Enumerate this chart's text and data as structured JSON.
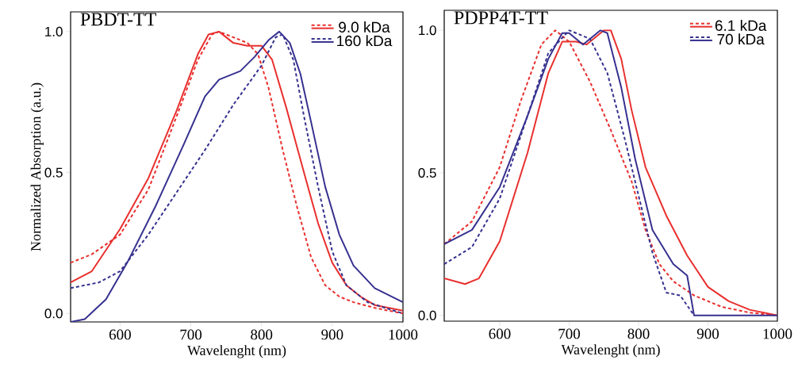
{
  "chart_data": [
    {
      "type": "line",
      "title": "PBDT-TT",
      "xlabel": "Wavelenght (nm)",
      "ylabel": "Normalized Absorption (a.u.)",
      "xlim": [
        530,
        1000
      ],
      "ylim": [
        -0.03,
        1.07
      ],
      "xticks": [
        600,
        700,
        800,
        900,
        1000
      ],
      "yticks": [
        {
          "value": 0,
          "label": "0.0"
        },
        {
          "value": 0.5,
          "label": "0.5"
        },
        {
          "value": 1,
          "label": "1.0"
        }
      ],
      "legend": "top right",
      "series": [
        {
          "name": "9.0 kDa",
          "color": "#e8302e",
          "line_style": "dashed",
          "x": [
            530,
            560,
            600,
            640,
            680,
            710,
            730,
            740,
            760,
            780,
            795,
            810,
            830,
            850,
            870,
            890,
            910,
            930,
            960,
            1000
          ],
          "values": [
            0.18,
            0.21,
            0.28,
            0.44,
            0.7,
            0.9,
            0.99,
            1.0,
            0.98,
            0.96,
            0.92,
            0.8,
            0.58,
            0.38,
            0.2,
            0.1,
            0.06,
            0.04,
            0.02,
            0.0
          ]
        },
        {
          "color": "#e8302e",
          "line_style": "solid",
          "x": [
            530,
            560,
            600,
            640,
            680,
            710,
            725,
            740,
            760,
            780,
            800,
            815,
            835,
            860,
            880,
            900,
            920,
            940,
            960,
            1000
          ],
          "values": [
            0.11,
            0.15,
            0.3,
            0.48,
            0.72,
            0.92,
            0.99,
            1.0,
            0.96,
            0.95,
            0.95,
            0.9,
            0.73,
            0.5,
            0.32,
            0.18,
            0.1,
            0.06,
            0.03,
            0.01
          ]
        },
        {
          "name": "160 kDa",
          "color": "#36318f",
          "line_style": "dashed",
          "x": [
            530,
            570,
            600,
            640,
            680,
            720,
            760,
            800,
            820,
            830,
            845,
            860,
            880,
            900,
            920,
            950,
            1000
          ],
          "values": [
            0.09,
            0.11,
            0.15,
            0.28,
            0.43,
            0.58,
            0.74,
            0.88,
            0.98,
            0.99,
            0.9,
            0.7,
            0.45,
            0.22,
            0.1,
            0.04,
            0.0
          ]
        },
        {
          "color": "#36318f",
          "line_style": "solid",
          "x": [
            530,
            550,
            580,
            610,
            650,
            690,
            720,
            740,
            770,
            790,
            810,
            825,
            840,
            855,
            870,
            890,
            910,
            930,
            960,
            1000
          ],
          "values": [
            -0.03,
            -0.02,
            0.05,
            0.18,
            0.38,
            0.6,
            0.77,
            0.83,
            0.86,
            0.91,
            0.97,
            1.0,
            0.96,
            0.85,
            0.68,
            0.45,
            0.28,
            0.17,
            0.09,
            0.04
          ]
        }
      ]
    },
    {
      "type": "line",
      "title": "PDPP4T-TT",
      "xlabel": "Wavelenght (nm)",
      "xlim": [
        520,
        1000
      ],
      "ylim": [
        -0.02,
        1.07
      ],
      "xticks": [
        600,
        700,
        800,
        900,
        1000
      ],
      "yticks": [
        {
          "value": 0,
          "label": "0.0"
        },
        {
          "value": 0.5,
          "label": "0.5"
        },
        {
          "value": 1,
          "label": "1.0"
        }
      ],
      "legend": "top right",
      "series": [
        {
          "name": "6.1 kDa",
          "color": "#e8302e",
          "line_style": "dashed",
          "x": [
            520,
            560,
            600,
            630,
            660,
            680,
            700,
            730,
            760,
            790,
            810,
            830,
            850,
            880,
            920,
            960,
            1000
          ],
          "values": [
            0.25,
            0.33,
            0.52,
            0.75,
            0.95,
            1.0,
            0.96,
            0.82,
            0.65,
            0.47,
            0.3,
            0.18,
            0.12,
            0.07,
            0.03,
            0.01,
            0.0
          ]
        },
        {
          "color": "#e8302e",
          "line_style": "solid",
          "x": [
            520,
            550,
            570,
            600,
            640,
            670,
            690,
            710,
            725,
            750,
            760,
            775,
            790,
            810,
            840,
            870,
            900,
            930,
            960,
            1000
          ],
          "values": [
            0.13,
            0.11,
            0.13,
            0.26,
            0.57,
            0.85,
            0.96,
            0.96,
            0.95,
            1.0,
            1.0,
            0.9,
            0.72,
            0.52,
            0.35,
            0.21,
            0.1,
            0.05,
            0.02,
            0.0
          ]
        },
        {
          "name": "70 kDa",
          "color": "#36318f",
          "line_style": "dashed",
          "x": [
            520,
            560,
            600,
            640,
            670,
            700,
            730,
            755,
            780,
            800,
            820,
            840,
            860,
            880
          ],
          "values": [
            0.18,
            0.24,
            0.41,
            0.7,
            0.92,
            1.0,
            0.97,
            0.85,
            0.62,
            0.42,
            0.22,
            0.08,
            0.07,
            0.0
          ]
        },
        {
          "color": "#36318f",
          "line_style": "solid",
          "x": [
            520,
            560,
            600,
            640,
            670,
            690,
            700,
            720,
            745,
            755,
            775,
            795,
            820,
            850,
            870,
            880,
            900,
            950,
            1000
          ],
          "values": [
            0.25,
            0.3,
            0.45,
            0.7,
            0.9,
            0.99,
            0.99,
            0.95,
            1.0,
            0.99,
            0.8,
            0.55,
            0.3,
            0.18,
            0.14,
            0.0,
            0.0,
            0.0,
            0.0
          ]
        }
      ]
    }
  ]
}
